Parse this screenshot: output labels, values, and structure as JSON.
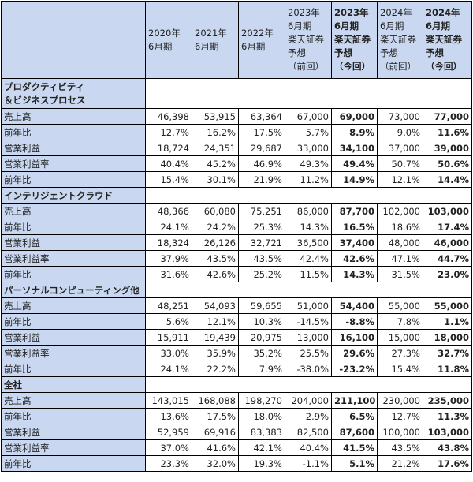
{
  "table": {
    "headers": [
      "2020年\n6月期",
      "2021年\n6月期",
      "2022年\n6月期",
      "2023年\n6月期\n楽天証券\n予想\n（前回）",
      "2023年\n6月期\n楽天証券\n予想\n（今回）",
      "2024年\n6月期\n楽天証券\n予想\n（前回）",
      "2024年\n6月期\n楽天証券\n予想\n（今回）"
    ],
    "sections": [
      {
        "title": "プロダクティビティ\n＆ビジネスプロセス",
        "groups": [
          [
            {
              "label": "売上高",
              "values": [
                "46,398",
                "53,915",
                "63,364",
                "67,000",
                "69,000",
                "73,000",
                "77,000"
              ]
            },
            {
              "label": "前年比",
              "values": [
                "12.7%",
                "16.2%",
                "17.5%",
                "5.7%",
                "8.9%",
                "9.0%",
                "11.6%"
              ]
            }
          ],
          [
            {
              "label": "営業利益",
              "values": [
                "18,724",
                "24,351",
                "29,687",
                "33,000",
                "34,100",
                "37,000",
                "39,000"
              ]
            },
            {
              "label": "営業利益率",
              "values": [
                "40.4%",
                "45.2%",
                "46.9%",
                "49.3%",
                "49.4%",
                "50.7%",
                "50.6%"
              ]
            },
            {
              "label": "前年比",
              "values": [
                "15.4%",
                "30.1%",
                "21.9%",
                "11.2%",
                "14.9%",
                "12.1%",
                "14.4%"
              ]
            }
          ]
        ]
      },
      {
        "title": "インテリジェントクラウド",
        "groups": [
          [
            {
              "label": "売上高",
              "values": [
                "48,366",
                "60,080",
                "75,251",
                "86,000",
                "87,700",
                "102,000",
                "103,000"
              ]
            },
            {
              "label": "前年比",
              "values": [
                "24.1%",
                "24.2%",
                "25.3%",
                "14.3%",
                "16.5%",
                "18.6%",
                "17.4%"
              ]
            }
          ],
          [
            {
              "label": "営業利益",
              "values": [
                "18,324",
                "26,126",
                "32,721",
                "36,500",
                "37,400",
                "48,000",
                "46,000"
              ]
            },
            {
              "label": "営業利益率",
              "values": [
                "37.9%",
                "43.5%",
                "43.5%",
                "42.4%",
                "42.6%",
                "47.1%",
                "44.7%"
              ]
            },
            {
              "label": "前年比",
              "values": [
                "31.6%",
                "42.6%",
                "25.2%",
                "11.5%",
                "14.3%",
                "31.5%",
                "23.0%"
              ]
            }
          ]
        ]
      },
      {
        "title": "パーソナルコンピューティング他",
        "groups": [
          [
            {
              "label": "売上高",
              "values": [
                "48,251",
                "54,093",
                "59,655",
                "51,000",
                "54,400",
                "55,000",
                "55,000"
              ]
            },
            {
              "label": "前年比",
              "values": [
                "5.6%",
                "12.1%",
                "10.3%",
                "-14.5%",
                "-8.8%",
                "7.8%",
                "1.1%"
              ]
            }
          ],
          [
            {
              "label": "営業利益",
              "values": [
                "15,911",
                "19,439",
                "20,975",
                "13,000",
                "16,100",
                "15,000",
                "18,000"
              ]
            },
            {
              "label": "営業利益率",
              "values": [
                "33.0%",
                "35.9%",
                "35.2%",
                "25.5%",
                "29.6%",
                "27.3%",
                "32.7%"
              ]
            },
            {
              "label": "前年比",
              "values": [
                "24.1%",
                "22.2%",
                "7.9%",
                "-38.0%",
                "-23.2%",
                "15.4%",
                "11.8%"
              ]
            }
          ]
        ]
      },
      {
        "title": "全社",
        "groups": [
          [
            {
              "label": "売上高",
              "values": [
                "143,015",
                "168,088",
                "198,270",
                "204,000",
                "211,100",
                "230,000",
                "235,000"
              ]
            },
            {
              "label": "前年比",
              "values": [
                "13.6%",
                "17.5%",
                "18.0%",
                "2.9%",
                "6.5%",
                "12.7%",
                "11.3%"
              ]
            }
          ],
          [
            {
              "label": "営業利益",
              "values": [
                "52,959",
                "69,916",
                "83,383",
                "82,500",
                "87,600",
                "100,000",
                "103,000"
              ]
            },
            {
              "label": "営業利益率",
              "values": [
                "37.0%",
                "41.6%",
                "42.1%",
                "40.4%",
                "41.5%",
                "43.5%",
                "43.8%"
              ]
            },
            {
              "label": "前年比",
              "values": [
                "23.3%",
                "32.0%",
                "19.3%",
                "-1.1%",
                "5.1%",
                "21.2%",
                "17.6%"
              ]
            }
          ]
        ]
      }
    ]
  }
}
